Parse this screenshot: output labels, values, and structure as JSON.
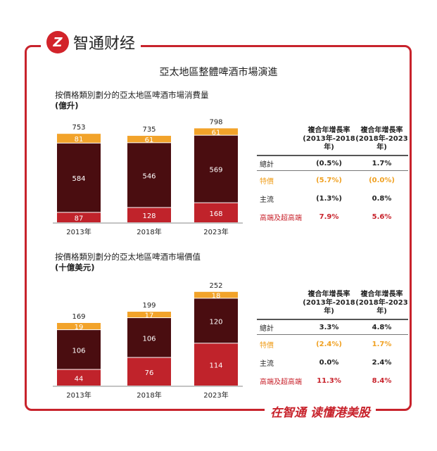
{
  "brand": {
    "logo_text": "智通财经",
    "slogan": "在智通 读懂港美股",
    "logo_lettering": "Z"
  },
  "title": "亞太地區整體啤酒市場演進",
  "colors": {
    "premium": "#c0232b",
    "mainstream": "#4a0d10",
    "special": "#f2a32a",
    "frame": "#c8232c"
  },
  "chart_data": [
    {
      "type": "bar",
      "stacked": true,
      "title": "按價格類別劃分的亞太地區啤酒市場消費量",
      "ylabel": "(億升)",
      "categories": [
        "2013年",
        "2018年",
        "2023年"
      ],
      "series": [
        {
          "key": "premium",
          "values": [
            87,
            128,
            168
          ]
        },
        {
          "key": "mainstream",
          "values": [
            584,
            546,
            569
          ]
        },
        {
          "key": "special",
          "values": [
            81,
            61,
            61
          ]
        }
      ],
      "totals": [
        753,
        735,
        798
      ],
      "ylim": [
        0,
        800
      ],
      "grid": false
    },
    {
      "type": "bar",
      "stacked": true,
      "title": "按價格類別劃分的亞太地區啤酒市場價值",
      "ylabel": "(十億美元)",
      "categories": [
        "2013年",
        "2018年",
        "2023年"
      ],
      "series": [
        {
          "key": "premium",
          "values": [
            44,
            76,
            114
          ]
        },
        {
          "key": "mainstream",
          "values": [
            106,
            106,
            120
          ]
        },
        {
          "key": "special",
          "values": [
            19,
            17,
            18
          ]
        }
      ],
      "totals": [
        169,
        199,
        252
      ],
      "ylim": [
        0,
        260
      ],
      "grid": false
    }
  ],
  "tables": [
    {
      "headers": [
        "複合年增長率\n(2013年-2018年)",
        "複合年增長率\n(2018年-2023年)"
      ],
      "rows": [
        {
          "label": "總計",
          "a": "(0.5%)",
          "b": "1.7%"
        },
        {
          "label": "特價",
          "a": "(5.7%)",
          "b": "(0.0%)"
        },
        {
          "label": "主流",
          "a": "(1.3%)",
          "b": "0.8%"
        },
        {
          "label": "高端及超高端",
          "a": "7.9%",
          "b": "5.6%"
        }
      ]
    },
    {
      "headers": [
        "複合年增長率\n(2013年-2018年)",
        "複合年增長率\n(2018年-2023年)"
      ],
      "rows": [
        {
          "label": "總計",
          "a": "3.3%",
          "b": "4.8%"
        },
        {
          "label": "特價",
          "a": "(2.4%)",
          "b": "1.7%"
        },
        {
          "label": "主流",
          "a": "0.0%",
          "b": "2.4%"
        },
        {
          "label": "高端及超高端",
          "a": "11.3%",
          "b": "8.4%"
        }
      ]
    }
  ]
}
